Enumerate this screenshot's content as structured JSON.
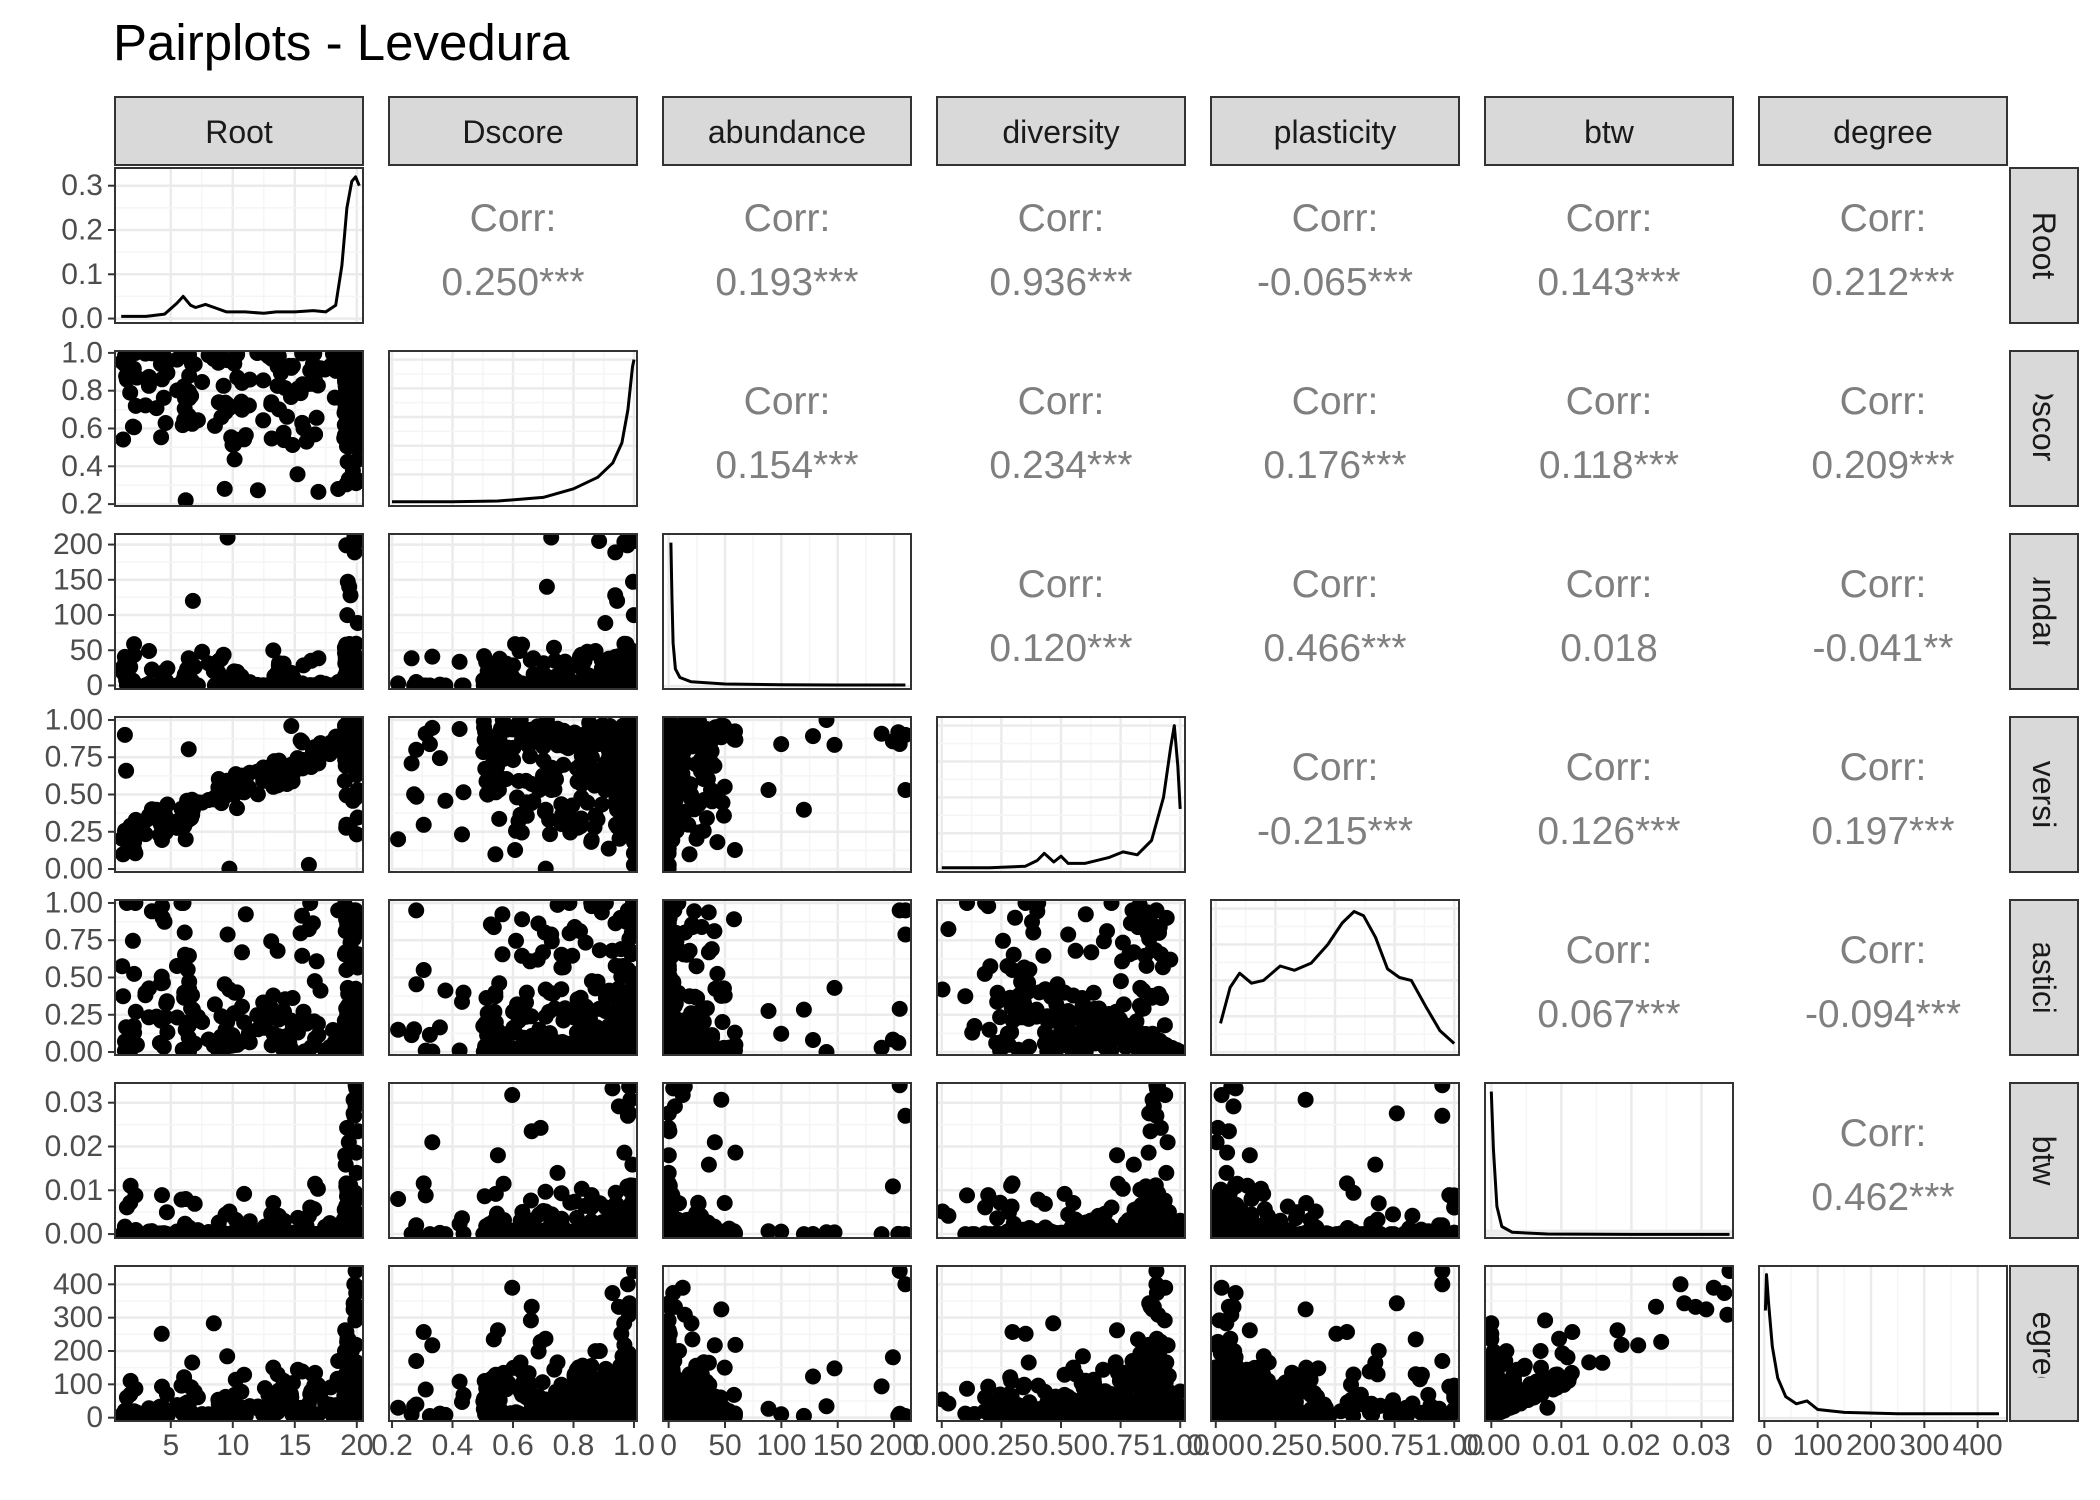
{
  "page": {
    "title": "Pairplots - Levedura"
  },
  "colors": {
    "panel_background": "#ffffff",
    "grid_major": "#ebebeb",
    "grid_minor": "#f5f5f5",
    "strip_fill": "#d9d9d9",
    "panel_border": "#333333",
    "point": "#000000",
    "corr_text": "#7f7f7f",
    "tick_text": "#4d4d4d"
  },
  "chart_data": {
    "type": "pairplot",
    "title": "Pairplots - Levedura",
    "variables": [
      "Root",
      "Dscore",
      "abundance",
      "diversity",
      "plasticity",
      "btw",
      "degree"
    ],
    "x_axis_ticks": [
      {
        "variable": "Root",
        "labels": [
          "5",
          "10",
          "15",
          "20"
        ]
      },
      {
        "variable": "Dscore",
        "labels": [
          "0.2",
          "0.4",
          "0.6",
          "0.8",
          "1.0"
        ]
      },
      {
        "variable": "abundance",
        "labels": [
          "0",
          "50",
          "100",
          "150",
          "200"
        ]
      },
      {
        "variable": "diversity",
        "labels": [
          "0.00",
          "0.25",
          "0.50",
          "0.75",
          "1.00"
        ]
      },
      {
        "variable": "plasticity",
        "labels": [
          "0.00",
          "0.25",
          "0.50",
          "0.75",
          "1.00"
        ]
      },
      {
        "variable": "btw",
        "labels": [
          "0.00",
          "0.01",
          "0.02",
          "0.03"
        ]
      },
      {
        "variable": "degree",
        "labels": [
          "0",
          "100",
          "200",
          "300",
          "400"
        ]
      }
    ],
    "y_axis_ticks": [
      {
        "variable": "Root (density)",
        "labels": [
          "0.0",
          "0.1",
          "0.2",
          "0.3"
        ]
      },
      {
        "variable": "Dscore",
        "labels": [
          "0.2",
          "0.4",
          "0.6",
          "0.8",
          "1.0"
        ]
      },
      {
        "variable": "abundance",
        "labels": [
          "0",
          "50",
          "100",
          "150",
          "200"
        ]
      },
      {
        "variable": "diversity",
        "labels": [
          "0.00",
          "0.25",
          "0.50",
          "0.75",
          "1.00"
        ]
      },
      {
        "variable": "plasticity",
        "labels": [
          "0.00",
          "0.25",
          "0.50",
          "0.75",
          "1.00"
        ]
      },
      {
        "variable": "btw",
        "labels": [
          "0.00",
          "0.01",
          "0.02",
          "0.03"
        ]
      },
      {
        "variable": "degree",
        "labels": [
          "0",
          "100",
          "200",
          "300",
          "400"
        ]
      }
    ],
    "correlation_label": "Corr:",
    "correlations": [
      {
        "row": "Root",
        "col": "Dscore",
        "value": "0.250***"
      },
      {
        "row": "Root",
        "col": "abundance",
        "value": "0.193***"
      },
      {
        "row": "Root",
        "col": "diversity",
        "value": "0.936***"
      },
      {
        "row": "Root",
        "col": "plasticity",
        "value": "-0.065***"
      },
      {
        "row": "Root",
        "col": "btw",
        "value": "0.143***"
      },
      {
        "row": "Root",
        "col": "degree",
        "value": "0.212***"
      },
      {
        "row": "Dscore",
        "col": "abundance",
        "value": "0.154***"
      },
      {
        "row": "Dscore",
        "col": "diversity",
        "value": "0.234***"
      },
      {
        "row": "Dscore",
        "col": "plasticity",
        "value": "0.176***"
      },
      {
        "row": "Dscore",
        "col": "btw",
        "value": "0.118***"
      },
      {
        "row": "Dscore",
        "col": "degree",
        "value": "0.209***"
      },
      {
        "row": "abundance",
        "col": "diversity",
        "value": "0.120***"
      },
      {
        "row": "abundance",
        "col": "plasticity",
        "value": "0.466***"
      },
      {
        "row": "abundance",
        "col": "btw",
        "value": "0.018"
      },
      {
        "row": "abundance",
        "col": "degree",
        "value": "-0.041**"
      },
      {
        "row": "diversity",
        "col": "plasticity",
        "value": "-0.215***"
      },
      {
        "row": "diversity",
        "col": "btw",
        "value": "0.126***"
      },
      {
        "row": "diversity",
        "col": "degree",
        "value": "0.197***"
      },
      {
        "row": "plasticity",
        "col": "btw",
        "value": "0.067***"
      },
      {
        "row": "plasticity",
        "col": "degree",
        "value": "-0.094***"
      },
      {
        "row": "btw",
        "col": "degree",
        "value": "0.462***"
      }
    ],
    "ranges": {
      "Root": [
        0.5,
        20.5
      ],
      "Dscore": [
        0.19,
        1.01
      ],
      "abundance": [
        -5,
        215
      ],
      "diversity": [
        -0.02,
        1.02
      ],
      "plasticity": [
        -0.02,
        1.02
      ],
      "btw": [
        -0.0009,
        0.0345
      ],
      "degree": [
        -10,
        455
      ]
    },
    "density_ylim_root": [
      -0.01,
      0.34
    ],
    "densities": {
      "Root": [
        [
          1,
          0.005
        ],
        [
          3,
          0.005
        ],
        [
          4.5,
          0.01
        ],
        [
          5.5,
          0.035
        ],
        [
          6,
          0.05
        ],
        [
          6.6,
          0.03
        ],
        [
          7,
          0.025
        ],
        [
          7.8,
          0.032
        ],
        [
          8.5,
          0.025
        ],
        [
          9.5,
          0.015
        ],
        [
          11,
          0.015
        ],
        [
          12.5,
          0.012
        ],
        [
          13.5,
          0.015
        ],
        [
          15,
          0.015
        ],
        [
          16.5,
          0.018
        ],
        [
          17.5,
          0.015
        ],
        [
          18.3,
          0.03
        ],
        [
          18.8,
          0.12
        ],
        [
          19.2,
          0.25
        ],
        [
          19.6,
          0.31
        ],
        [
          19.9,
          0.32
        ],
        [
          20.2,
          0.3
        ]
      ],
      "Dscore": [
        [
          0.2,
          0.01
        ],
        [
          0.4,
          0.01
        ],
        [
          0.55,
          0.015
        ],
        [
          0.7,
          0.04
        ],
        [
          0.8,
          0.1
        ],
        [
          0.88,
          0.18
        ],
        [
          0.93,
          0.28
        ],
        [
          0.96,
          0.42
        ],
        [
          0.98,
          0.65
        ],
        [
          0.995,
          0.95
        ],
        [
          1.0,
          1.0
        ]
      ],
      "abundance": [
        [
          2,
          1.0
        ],
        [
          3,
          0.6
        ],
        [
          4,
          0.3
        ],
        [
          6,
          0.12
        ],
        [
          10,
          0.06
        ],
        [
          20,
          0.03
        ],
        [
          50,
          0.015
        ],
        [
          100,
          0.01
        ],
        [
          150,
          0.008
        ],
        [
          210,
          0.008
        ]
      ],
      "diversity": [
        [
          0.0,
          0.01
        ],
        [
          0.2,
          0.01
        ],
        [
          0.35,
          0.02
        ],
        [
          0.4,
          0.06
        ],
        [
          0.43,
          0.11
        ],
        [
          0.47,
          0.05
        ],
        [
          0.5,
          0.09
        ],
        [
          0.53,
          0.04
        ],
        [
          0.6,
          0.04
        ],
        [
          0.7,
          0.08
        ],
        [
          0.76,
          0.12
        ],
        [
          0.82,
          0.1
        ],
        [
          0.88,
          0.2
        ],
        [
          0.93,
          0.5
        ],
        [
          0.96,
          0.85
        ],
        [
          0.975,
          1.0
        ],
        [
          0.99,
          0.72
        ],
        [
          1.0,
          0.42
        ]
      ],
      "plasticity": [
        [
          0.02,
          0.2
        ],
        [
          0.06,
          0.45
        ],
        [
          0.1,
          0.55
        ],
        [
          0.15,
          0.48
        ],
        [
          0.2,
          0.5
        ],
        [
          0.27,
          0.6
        ],
        [
          0.33,
          0.57
        ],
        [
          0.4,
          0.62
        ],
        [
          0.47,
          0.75
        ],
        [
          0.53,
          0.9
        ],
        [
          0.58,
          0.98
        ],
        [
          0.62,
          0.95
        ],
        [
          0.67,
          0.8
        ],
        [
          0.72,
          0.58
        ],
        [
          0.77,
          0.52
        ],
        [
          0.82,
          0.5
        ],
        [
          0.88,
          0.32
        ],
        [
          0.94,
          0.15
        ],
        [
          1.0,
          0.06
        ]
      ],
      "btw": [
        [
          0.0,
          1.0
        ],
        [
          0.0003,
          0.6
        ],
        [
          0.0008,
          0.2
        ],
        [
          0.0015,
          0.06
        ],
        [
          0.003,
          0.02
        ],
        [
          0.008,
          0.008
        ],
        [
          0.02,
          0.005
        ],
        [
          0.034,
          0.005
        ]
      ],
      "degree": [
        [
          2,
          0.75
        ],
        [
          4,
          1.0
        ],
        [
          8,
          0.8
        ],
        [
          15,
          0.5
        ],
        [
          25,
          0.28
        ],
        [
          40,
          0.15
        ],
        [
          60,
          0.1
        ],
        [
          80,
          0.12
        ],
        [
          100,
          0.06
        ],
        [
          150,
          0.04
        ],
        [
          250,
          0.03
        ],
        [
          440,
          0.03
        ]
      ]
    }
  }
}
